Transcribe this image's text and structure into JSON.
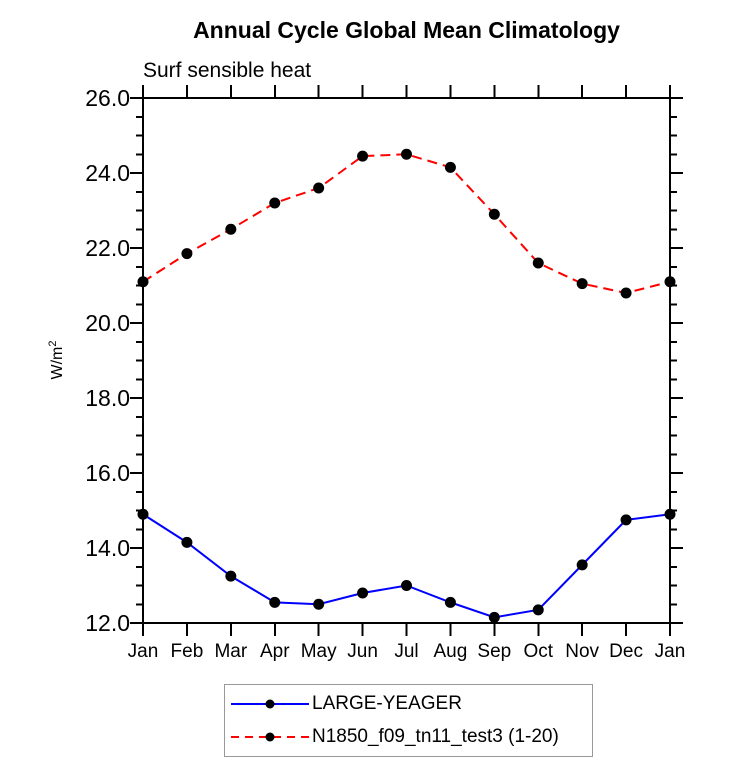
{
  "header": {
    "title": "Annual Cycle Global Mean Climatology",
    "subtitle": "Surf sensible heat"
  },
  "y_axis": {
    "label_base": "W/m",
    "label_exponent": "2"
  },
  "chart_data": {
    "type": "line",
    "title": "Annual Cycle Global Mean Climatology",
    "subtitle": "Surf sensible heat",
    "ylabel": "W/m^2",
    "xlabel": "",
    "x_categories": [
      "Jan",
      "Feb",
      "Mar",
      "Apr",
      "May",
      "Jun",
      "Jul",
      "Aug",
      "Sep",
      "Oct",
      "Nov",
      "Dec",
      "Jan"
    ],
    "ylim": [
      12.0,
      26.0
    ],
    "ytick_major_step": 2.0,
    "ytick_minor_step": 0.5,
    "ytick_labels": [
      "26.0",
      "24.0",
      "22.0",
      "20.0",
      "18.0",
      "16.0",
      "14.0",
      "12.0"
    ],
    "grid": false,
    "legend_position": "bottom-center",
    "axis_color": "#000000",
    "marker_color": "#000000",
    "series": [
      {
        "name": "LARGE-YEAGER",
        "color": "#0000ff",
        "line_style": "solid",
        "marker": "filled-circle",
        "values": [
          14.9,
          14.15,
          13.25,
          12.55,
          12.5,
          12.8,
          13.0,
          12.55,
          12.15,
          12.35,
          13.55,
          14.75,
          14.9
        ]
      },
      {
        "name": "N1850_f09_tn11_test3 (1-20)",
        "color": "#ff0000",
        "line_style": "dashed",
        "marker": "filled-circle",
        "values": [
          21.1,
          21.85,
          22.5,
          23.2,
          23.6,
          24.45,
          24.5,
          24.15,
          22.9,
          21.6,
          21.05,
          20.8,
          21.1
        ]
      }
    ]
  }
}
